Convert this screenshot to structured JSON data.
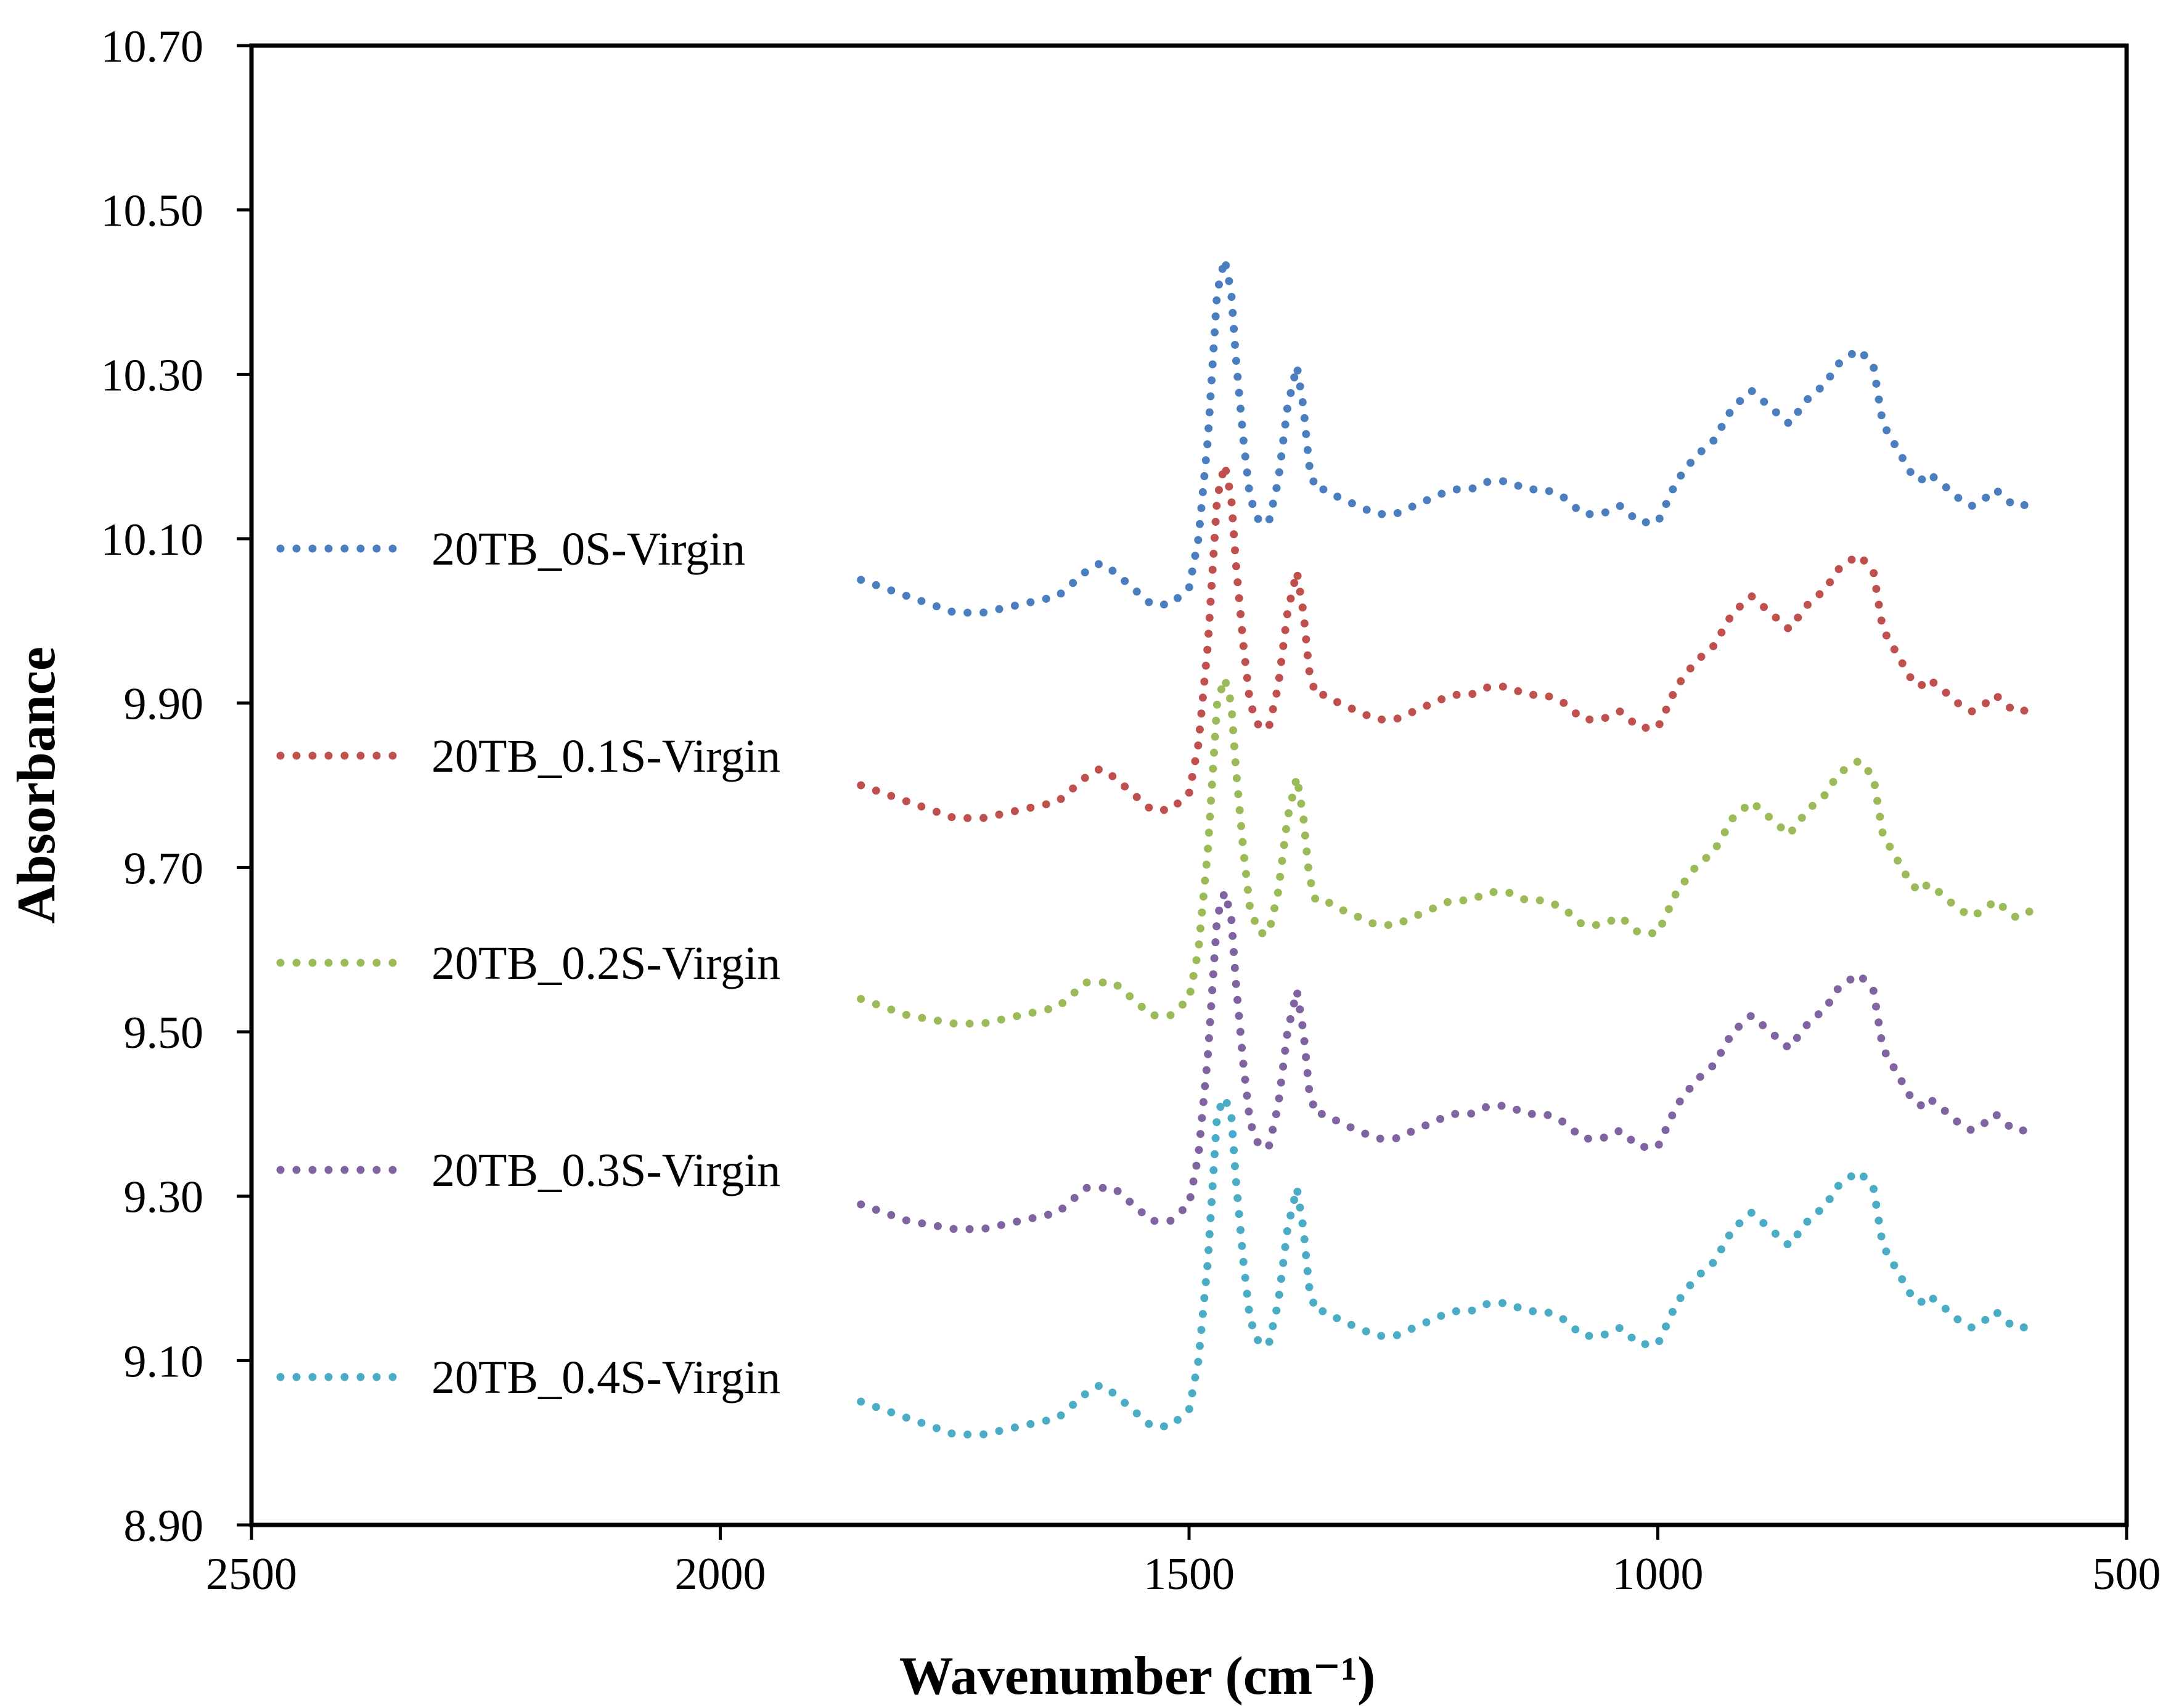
{
  "chart_data": {
    "type": "line",
    "title": "",
    "xlabel": "Wavenumber (cm⁻¹)",
    "ylabel": "Absorbance",
    "xlim": [
      2500,
      500
    ],
    "ylim": [
      8.9,
      10.7
    ],
    "x_reversed": true,
    "xticks": [
      2500,
      2000,
      1500,
      1000,
      500
    ],
    "xtick_labels": [
      "2500",
      "2000",
      "1500",
      "1000",
      "500"
    ],
    "yticks": [
      8.9,
      9.1,
      9.3,
      9.5,
      9.7,
      9.9,
      10.1,
      10.3,
      10.5,
      10.7
    ],
    "ytick_labels": [
      "8.90",
      "9.10",
      "9.30",
      "9.50",
      "9.70",
      "9.90",
      "10.10",
      "10.30",
      "10.50",
      "10.70"
    ],
    "grid": false,
    "legend_position": "left",
    "line_style": "dotted",
    "series": [
      {
        "name": "20TB_0S-Virgin",
        "color": "#4a7ebf",
        "x": [
          1850,
          1800,
          1750,
          1720,
          1680,
          1640,
          1610,
          1595,
          1580,
          1560,
          1540,
          1520,
          1500,
          1490,
          1480,
          1470,
          1462,
          1455,
          1450,
          1442,
          1435,
          1425,
          1415,
          1405,
          1395,
          1385,
          1378,
          1372,
          1365,
          1355,
          1340,
          1320,
          1300,
          1280,
          1260,
          1240,
          1220,
          1200,
          1180,
          1160,
          1140,
          1120,
          1100,
          1080,
          1060,
          1040,
          1020,
          1000,
          980,
          960,
          940,
          920,
          900,
          880,
          860,
          840,
          820,
          810,
          800,
          785,
          770,
          760,
          740,
          730,
          720,
          712,
          700,
          690,
          680,
          665,
          650,
          640,
          630,
          620,
          610,
          600
        ],
        "y": [
          10.05,
          10.03,
          10.01,
          10.01,
          10.02,
          10.03,
          10.06,
          10.07,
          10.06,
          10.04,
          10.02,
          10.02,
          10.04,
          10.1,
          10.22,
          10.4,
          10.44,
          10.4,
          10.32,
          10.22,
          10.15,
          10.12,
          10.12,
          10.17,
          10.26,
          10.31,
          10.26,
          10.19,
          10.16,
          10.16,
          10.15,
          10.14,
          10.13,
          10.13,
          10.14,
          10.15,
          10.16,
          10.16,
          10.17,
          10.17,
          10.16,
          10.16,
          10.15,
          10.13,
          10.13,
          10.14,
          10.12,
          10.12,
          10.17,
          10.2,
          10.22,
          10.26,
          10.28,
          10.26,
          10.24,
          10.27,
          10.29,
          10.31,
          10.32,
          10.33,
          10.31,
          10.24,
          10.2,
          10.18,
          10.17,
          10.18,
          10.17,
          10.16,
          10.15,
          10.14,
          10.15,
          10.16,
          10.15,
          10.14,
          10.14,
          10.15
        ]
      },
      {
        "name": "20TB_0.1S-Virgin",
        "color": "#c0504d",
        "x": [
          1850,
          1800,
          1750,
          1720,
          1680,
          1640,
          1610,
          1595,
          1580,
          1560,
          1540,
          1520,
          1500,
          1490,
          1480,
          1470,
          1462,
          1455,
          1450,
          1442,
          1435,
          1425,
          1415,
          1405,
          1395,
          1385,
          1378,
          1372,
          1365,
          1355,
          1340,
          1320,
          1300,
          1280,
          1260,
          1240,
          1220,
          1200,
          1180,
          1160,
          1140,
          1120,
          1100,
          1080,
          1060,
          1040,
          1020,
          1000,
          980,
          960,
          940,
          920,
          900,
          880,
          860,
          840,
          820,
          810,
          800,
          785,
          770,
          760,
          740,
          730,
          720,
          712,
          700,
          690,
          680,
          665,
          650,
          640,
          630,
          620,
          610,
          600
        ],
        "y": [
          9.8,
          9.78,
          9.76,
          9.76,
          9.77,
          9.78,
          9.81,
          9.82,
          9.81,
          9.79,
          9.77,
          9.77,
          9.79,
          9.85,
          9.97,
          10.15,
          10.19,
          10.15,
          10.07,
          9.97,
          9.9,
          9.87,
          9.87,
          9.92,
          10.01,
          10.06,
          10.01,
          9.94,
          9.91,
          9.91,
          9.9,
          9.89,
          9.88,
          9.88,
          9.89,
          9.9,
          9.91,
          9.91,
          9.92,
          9.92,
          9.91,
          9.91,
          9.9,
          9.88,
          9.88,
          9.89,
          9.87,
          9.87,
          9.92,
          9.95,
          9.97,
          10.01,
          10.03,
          10.01,
          9.99,
          10.02,
          10.04,
          10.06,
          10.07,
          10.08,
          10.06,
          9.99,
          9.95,
          9.93,
          9.92,
          9.93,
          9.92,
          9.91,
          9.9,
          9.89,
          9.9,
          9.91,
          9.9,
          9.89,
          9.89,
          9.9
        ]
      },
      {
        "name": "20TB_0.2S-Virgin",
        "color": "#9bbb59",
        "x": [
          1850,
          1800,
          1750,
          1720,
          1680,
          1640,
          1610,
          1595,
          1580,
          1560,
          1540,
          1520,
          1500,
          1490,
          1480,
          1470,
          1462,
          1455,
          1450,
          1442,
          1435,
          1425,
          1415,
          1405,
          1395,
          1385,
          1378,
          1372,
          1365,
          1355,
          1340,
          1320,
          1300,
          1280,
          1260,
          1240,
          1220,
          1200,
          1180,
          1160,
          1140,
          1120,
          1100,
          1080,
          1060,
          1040,
          1020,
          1000,
          980,
          960,
          940,
          920,
          900,
          880,
          860,
          840,
          820,
          810,
          800,
          785,
          770,
          760,
          740,
          730,
          720,
          712,
          700,
          690,
          680,
          665,
          650,
          640,
          630,
          620,
          610,
          600
        ],
        "y": [
          9.54,
          9.52,
          9.51,
          9.51,
          9.52,
          9.53,
          9.56,
          9.56,
          9.56,
          9.54,
          9.52,
          9.52,
          9.54,
          9.6,
          9.72,
          9.9,
          9.93,
          9.9,
          9.82,
          9.72,
          9.65,
          9.62,
          9.62,
          9.67,
          9.76,
          9.81,
          9.76,
          9.69,
          9.66,
          9.66,
          9.65,
          9.64,
          9.63,
          9.63,
          9.64,
          9.65,
          9.66,
          9.66,
          9.67,
          9.67,
          9.66,
          9.66,
          9.65,
          9.63,
          9.63,
          9.64,
          9.62,
          9.62,
          9.67,
          9.7,
          9.72,
          9.76,
          9.78,
          9.76,
          9.74,
          9.77,
          9.79,
          9.81,
          9.82,
          9.83,
          9.81,
          9.74,
          9.7,
          9.68,
          9.67,
          9.68,
          9.67,
          9.66,
          9.65,
          9.64,
          9.65,
          9.66,
          9.65,
          9.64,
          9.64,
          9.65
        ]
      },
      {
        "name": "20TB_0.3S-Virgin",
        "color": "#8064a2",
        "x": [
          1850,
          1800,
          1750,
          1720,
          1680,
          1640,
          1610,
          1595,
          1580,
          1560,
          1540,
          1520,
          1500,
          1490,
          1480,
          1470,
          1462,
          1455,
          1450,
          1442,
          1435,
          1425,
          1415,
          1405,
          1395,
          1385,
          1378,
          1372,
          1365,
          1355,
          1340,
          1320,
          1300,
          1280,
          1260,
          1240,
          1220,
          1200,
          1180,
          1160,
          1140,
          1120,
          1100,
          1080,
          1060,
          1040,
          1020,
          1000,
          980,
          960,
          940,
          920,
          900,
          880,
          860,
          840,
          820,
          810,
          800,
          785,
          770,
          760,
          740,
          730,
          720,
          712,
          700,
          690,
          680,
          665,
          650,
          640,
          630,
          620,
          610,
          600
        ],
        "y": [
          9.29,
          9.27,
          9.26,
          9.26,
          9.27,
          9.28,
          9.31,
          9.31,
          9.31,
          9.29,
          9.27,
          9.27,
          9.29,
          9.35,
          9.47,
          9.64,
          9.67,
          9.64,
          9.56,
          9.46,
          9.39,
          9.36,
          9.36,
          9.41,
          9.5,
          9.55,
          9.5,
          9.43,
          9.4,
          9.4,
          9.39,
          9.38,
          9.37,
          9.37,
          9.38,
          9.39,
          9.4,
          9.4,
          9.41,
          9.41,
          9.4,
          9.4,
          9.39,
          9.37,
          9.37,
          9.38,
          9.36,
          9.36,
          9.41,
          9.44,
          9.46,
          9.5,
          9.52,
          9.5,
          9.48,
          9.51,
          9.53,
          9.55,
          9.56,
          9.57,
          9.55,
          9.48,
          9.44,
          9.42,
          9.41,
          9.42,
          9.41,
          9.4,
          9.39,
          9.38,
          9.39,
          9.4,
          9.39,
          9.38,
          9.38,
          9.39
        ]
      },
      {
        "name": "20TB_0.4S-Virgin",
        "color": "#4bacc6",
        "x": [
          1850,
          1800,
          1750,
          1720,
          1680,
          1640,
          1610,
          1595,
          1580,
          1560,
          1540,
          1520,
          1500,
          1490,
          1480,
          1470,
          1462,
          1455,
          1450,
          1442,
          1435,
          1425,
          1415,
          1405,
          1395,
          1385,
          1378,
          1372,
          1365,
          1355,
          1340,
          1320,
          1300,
          1280,
          1260,
          1240,
          1220,
          1200,
          1180,
          1160,
          1140,
          1120,
          1100,
          1080,
          1060,
          1040,
          1020,
          1000,
          980,
          960,
          940,
          920,
          900,
          880,
          860,
          840,
          820,
          810,
          800,
          785,
          770,
          760,
          740,
          730,
          720,
          712,
          700,
          690,
          680,
          665,
          650,
          640,
          630,
          620,
          610,
          600
        ],
        "y": [
          9.05,
          9.03,
          9.01,
          9.01,
          9.02,
          9.03,
          9.06,
          9.07,
          9.06,
          9.04,
          9.02,
          9.02,
          9.04,
          9.1,
          9.22,
          9.4,
          9.42,
          9.4,
          9.32,
          9.22,
          9.15,
          9.12,
          9.12,
          9.17,
          9.26,
          9.31,
          9.26,
          9.19,
          9.16,
          9.16,
          9.15,
          9.14,
          9.13,
          9.13,
          9.14,
          9.15,
          9.16,
          9.16,
          9.17,
          9.17,
          9.16,
          9.16,
          9.15,
          9.13,
          9.13,
          9.14,
          9.12,
          9.12,
          9.17,
          9.2,
          9.22,
          9.26,
          9.28,
          9.26,
          9.24,
          9.27,
          9.29,
          9.31,
          9.32,
          9.33,
          9.31,
          9.24,
          9.2,
          9.18,
          9.17,
          9.18,
          9.17,
          9.16,
          9.15,
          9.14,
          9.15,
          9.16,
          9.15,
          9.14,
          9.14,
          9.15
        ]
      }
    ]
  }
}
